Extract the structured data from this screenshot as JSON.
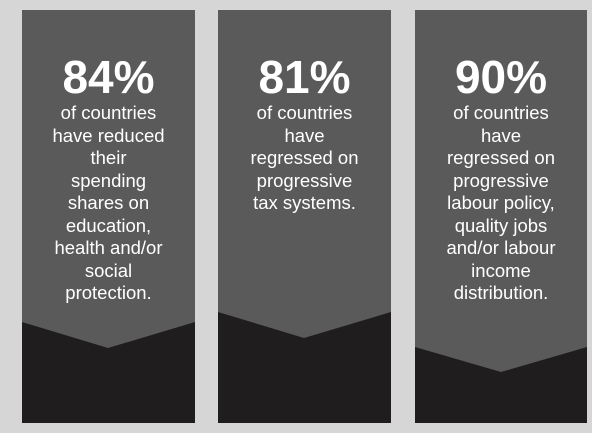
{
  "colors": {
    "background": "#d6d6d6",
    "panel_top": "#5a5a5a",
    "panel_bottom": "#1f1d1d",
    "text": "#ffffff"
  },
  "cards": [
    {
      "stat": "84%",
      "lines": [
        "of countries",
        "have reduced",
        "their",
        "spending",
        "shares on",
        "education,",
        "health and/or",
        "social",
        "protection."
      ]
    },
    {
      "stat": "81%",
      "lines": [
        "of countries",
        "have",
        "regressed on",
        "progressive",
        "tax systems."
      ]
    },
    {
      "stat": "90%",
      "lines": [
        "of countries",
        "have",
        "regressed on",
        "progressive",
        "labour policy,",
        "quality jobs",
        "and/or labour",
        "income",
        "distribution."
      ]
    }
  ]
}
